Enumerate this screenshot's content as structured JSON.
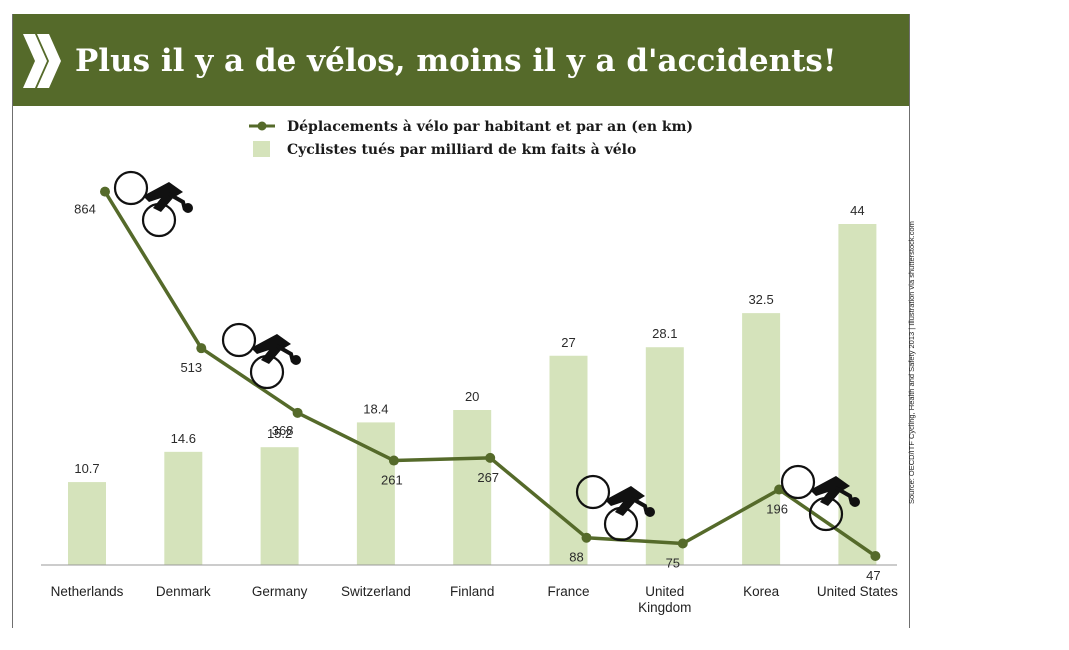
{
  "title": "Plus il y a de vélos, moins il y a d'accidents!",
  "source": "Source: OECD/ITF Cycling, Health and Safety 2013 | Illustration via shutterstock.com",
  "colors": {
    "banner": "#556a2a",
    "line": "#556a2a",
    "bar": "#d5e3bb"
  },
  "chart_data": {
    "type": "bar+line",
    "categories": [
      "Netherlands",
      "Denmark",
      "Germany",
      "Switzerland",
      "Finland",
      "France",
      "United Kingdom",
      "Korea",
      "United States"
    ],
    "series": [
      {
        "name": "Déplacements à vélo par habitant et par an (en km)",
        "type": "line",
        "values": [
          864,
          513,
          368,
          261,
          267,
          88,
          75,
          196,
          47
        ]
      },
      {
        "name": "Cyclistes tués par milliard de km faits à vélo",
        "type": "bar",
        "values": [
          10.7,
          14.6,
          15.2,
          18.4,
          20,
          27,
          28.1,
          32.5,
          44
        ]
      }
    ],
    "value_labels": {
      "line": [
        "864",
        "513",
        "368",
        "261",
        "267",
        "88",
        "75",
        "196",
        "47"
      ],
      "bar": [
        "10.7",
        "14.6",
        "15.2",
        "18.4",
        "20",
        "27",
        "28.1",
        "32.5",
        "44"
      ]
    },
    "category_labels": [
      [
        "Netherlands"
      ],
      [
        "Denmark"
      ],
      [
        "Germany"
      ],
      [
        "Switzerland"
      ],
      [
        "Finland"
      ],
      [
        "France"
      ],
      [
        "United",
        "Kingdom"
      ],
      [
        "Korea"
      ],
      [
        "United States"
      ]
    ],
    "legend_position": "top-center",
    "grid": false,
    "icons": [
      "cyclist-icon",
      "cyclist-icon",
      "cyclist-icon",
      "cyclist-icon"
    ]
  }
}
